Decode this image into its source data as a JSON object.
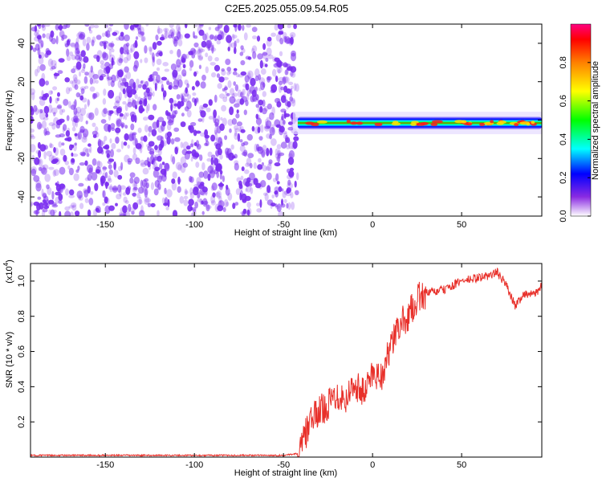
{
  "title": "C2E5.2025.055.09.54.R05",
  "colors": {
    "snr_line": "#e8302a",
    "speckle": "#7a2cf0",
    "axis": "#000000"
  },
  "chart_data": [
    {
      "type": "heatmap",
      "xlabel": "Height of straight line (km)",
      "ylabel": "Frequency (Hz)",
      "xlim": [
        -192,
        95
      ],
      "ylim": [
        -50,
        50
      ],
      "x_ticks": [
        -150,
        -100,
        -50,
        0,
        50
      ],
      "y_ticks": [
        -40,
        -20,
        0,
        20,
        40
      ],
      "colorbar": {
        "label": "Normalized spectral amplitude",
        "range": [
          0,
          1
        ],
        "ticks": [
          "0.0",
          "0.2",
          "0.4",
          "0.6",
          "0.8"
        ],
        "colormap": "rainbow"
      },
      "regions": [
        {
          "name": "noise",
          "x_range": [
            -192,
            -42
          ],
          "y_range": [
            -50,
            50
          ],
          "amplitude": 0.1
        },
        {
          "name": "signal",
          "x_range": [
            -42,
            95
          ],
          "center_frequency_hz": -1.5,
          "amplitude": 1.0
        }
      ]
    },
    {
      "type": "line",
      "xlabel": "Height of straight line (km)",
      "ylabel": "SNR (10 * v/v)",
      "y_multiplier": "(x10",
      "y_multiplier_exp": "4",
      "y_multiplier_close": ")",
      "xlim": [
        -192,
        95
      ],
      "ylim": [
        0,
        1.1
      ],
      "x_ticks": [
        -150,
        -100,
        -50,
        0,
        50
      ],
      "y_ticks": [
        "0.2",
        "0.4",
        "0.6",
        "0.8",
        "1.0"
      ],
      "series": [
        {
          "x": [
            -192,
            -150,
            -100,
            -50,
            -42,
            -40,
            -38,
            -35,
            -30,
            -25,
            -20,
            -15,
            -10,
            -5,
            0,
            5,
            10,
            15,
            20,
            25,
            30,
            40,
            50,
            60,
            65,
            70,
            72,
            75,
            80,
            85,
            90,
            95
          ],
          "y": [
            0.01,
            0.01,
            0.01,
            0.01,
            0.02,
            0.05,
            0.12,
            0.2,
            0.26,
            0.3,
            0.36,
            0.33,
            0.42,
            0.36,
            0.48,
            0.46,
            0.62,
            0.75,
            0.8,
            0.9,
            0.93,
            0.95,
            1.0,
            1.02,
            1.03,
            1.05,
            1.02,
            0.98,
            0.86,
            0.93,
            0.92,
            0.97
          ]
        }
      ]
    }
  ]
}
